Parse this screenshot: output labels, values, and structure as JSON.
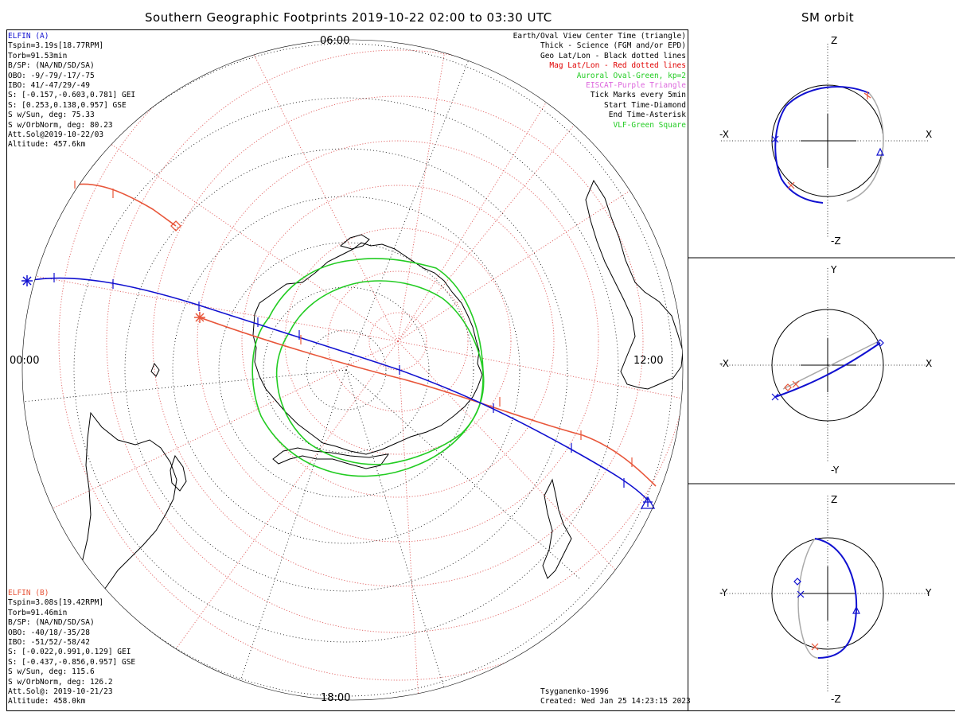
{
  "title": "Southern Geographic Footprints 2019-10-22 02:00 to 03:30 UTC",
  "orbit_title": "SM orbit",
  "clock_labels": {
    "top": "06:00",
    "left": "00:00",
    "right": "12:00",
    "bottom": "18:00"
  },
  "elfin_a": {
    "name": "ELFIN (A)",
    "color": "#1010d0",
    "lines": [
      "Tspin=3.19s[18.77RPM]",
      "Torb=91.53min",
      "B/SP: (NA/ND/SD/SA)",
      "OBO: -9/-79/-17/-75",
      "IBO: 41/-47/29/-49",
      "S: [-0.157,-0.603,0.781] GEI",
      "S: [0.253,0.138,0.957] GSE",
      "S w/Sun, deg: 75.33",
      "S w/OrbNorm, deg: 80.23",
      "Att.Sol@2019-10-22/03",
      "Altitude: 457.6km"
    ]
  },
  "elfin_b": {
    "name": "ELFIN (B)",
    "color": "#e8563a",
    "lines": [
      "Tspin=3.08s[19.42RPM]",
      "Torb=91.46min",
      "B/SP: (NA/ND/SD/SA)",
      "OBO: -40/18/-35/28",
      "IBO: -51/52/-58/42",
      "S: [-0.022,0.991,0.129] GEI",
      "S: [-0.437,-0.856,0.957] GSE",
      "S w/Sun, deg: 115.6",
      "S w/OrbNorm, deg: 126.2",
      "Att.Sol@: 2019-10-21/23",
      "Altitude: 458.0km"
    ]
  },
  "legend": [
    {
      "text": "Earth/Oval View Center Time (triangle)",
      "color": "#000000"
    },
    {
      "text": "Thick - Science (FGM and/or EPD)",
      "color": "#000000"
    },
    {
      "text": "Geo Lat/Lon - Black dotted lines",
      "color": "#000000"
    },
    {
      "text": "Mag Lat/Lon - Red dotted lines",
      "color": "#e00000"
    },
    {
      "text": "Auroral Oval-Green, kp=2",
      "color": "#22cc22"
    },
    {
      "text": "EISCAT-Purple Triangle",
      "color": "#dd66dd"
    },
    {
      "text": "Tick Marks every 5min",
      "color": "#000000"
    },
    {
      "text": "Start Time-Diamond",
      "color": "#000000"
    },
    {
      "text": "End Time-Asterisk",
      "color": "#000000"
    },
    {
      "text": "VLF-Green Square",
      "color": "#22cc22"
    }
  ],
  "credits": {
    "model": "Tsyganenko-1996",
    "created": "Created: Wed Jan 25 14:23:15 2023"
  },
  "orbit_panels": [
    {
      "top": "Z",
      "bottom": "-Z",
      "left": "-X",
      "right": "X"
    },
    {
      "top": "Y",
      "bottom": "-Y",
      "left": "-X",
      "right": "X"
    },
    {
      "top": "Z",
      "bottom": "-Z",
      "left": "-Y",
      "right": "Y"
    }
  ],
  "colors": {
    "blue": "#1010d0",
    "red": "#e8563a",
    "green": "#22cc22",
    "grid_red": "#e06060"
  }
}
